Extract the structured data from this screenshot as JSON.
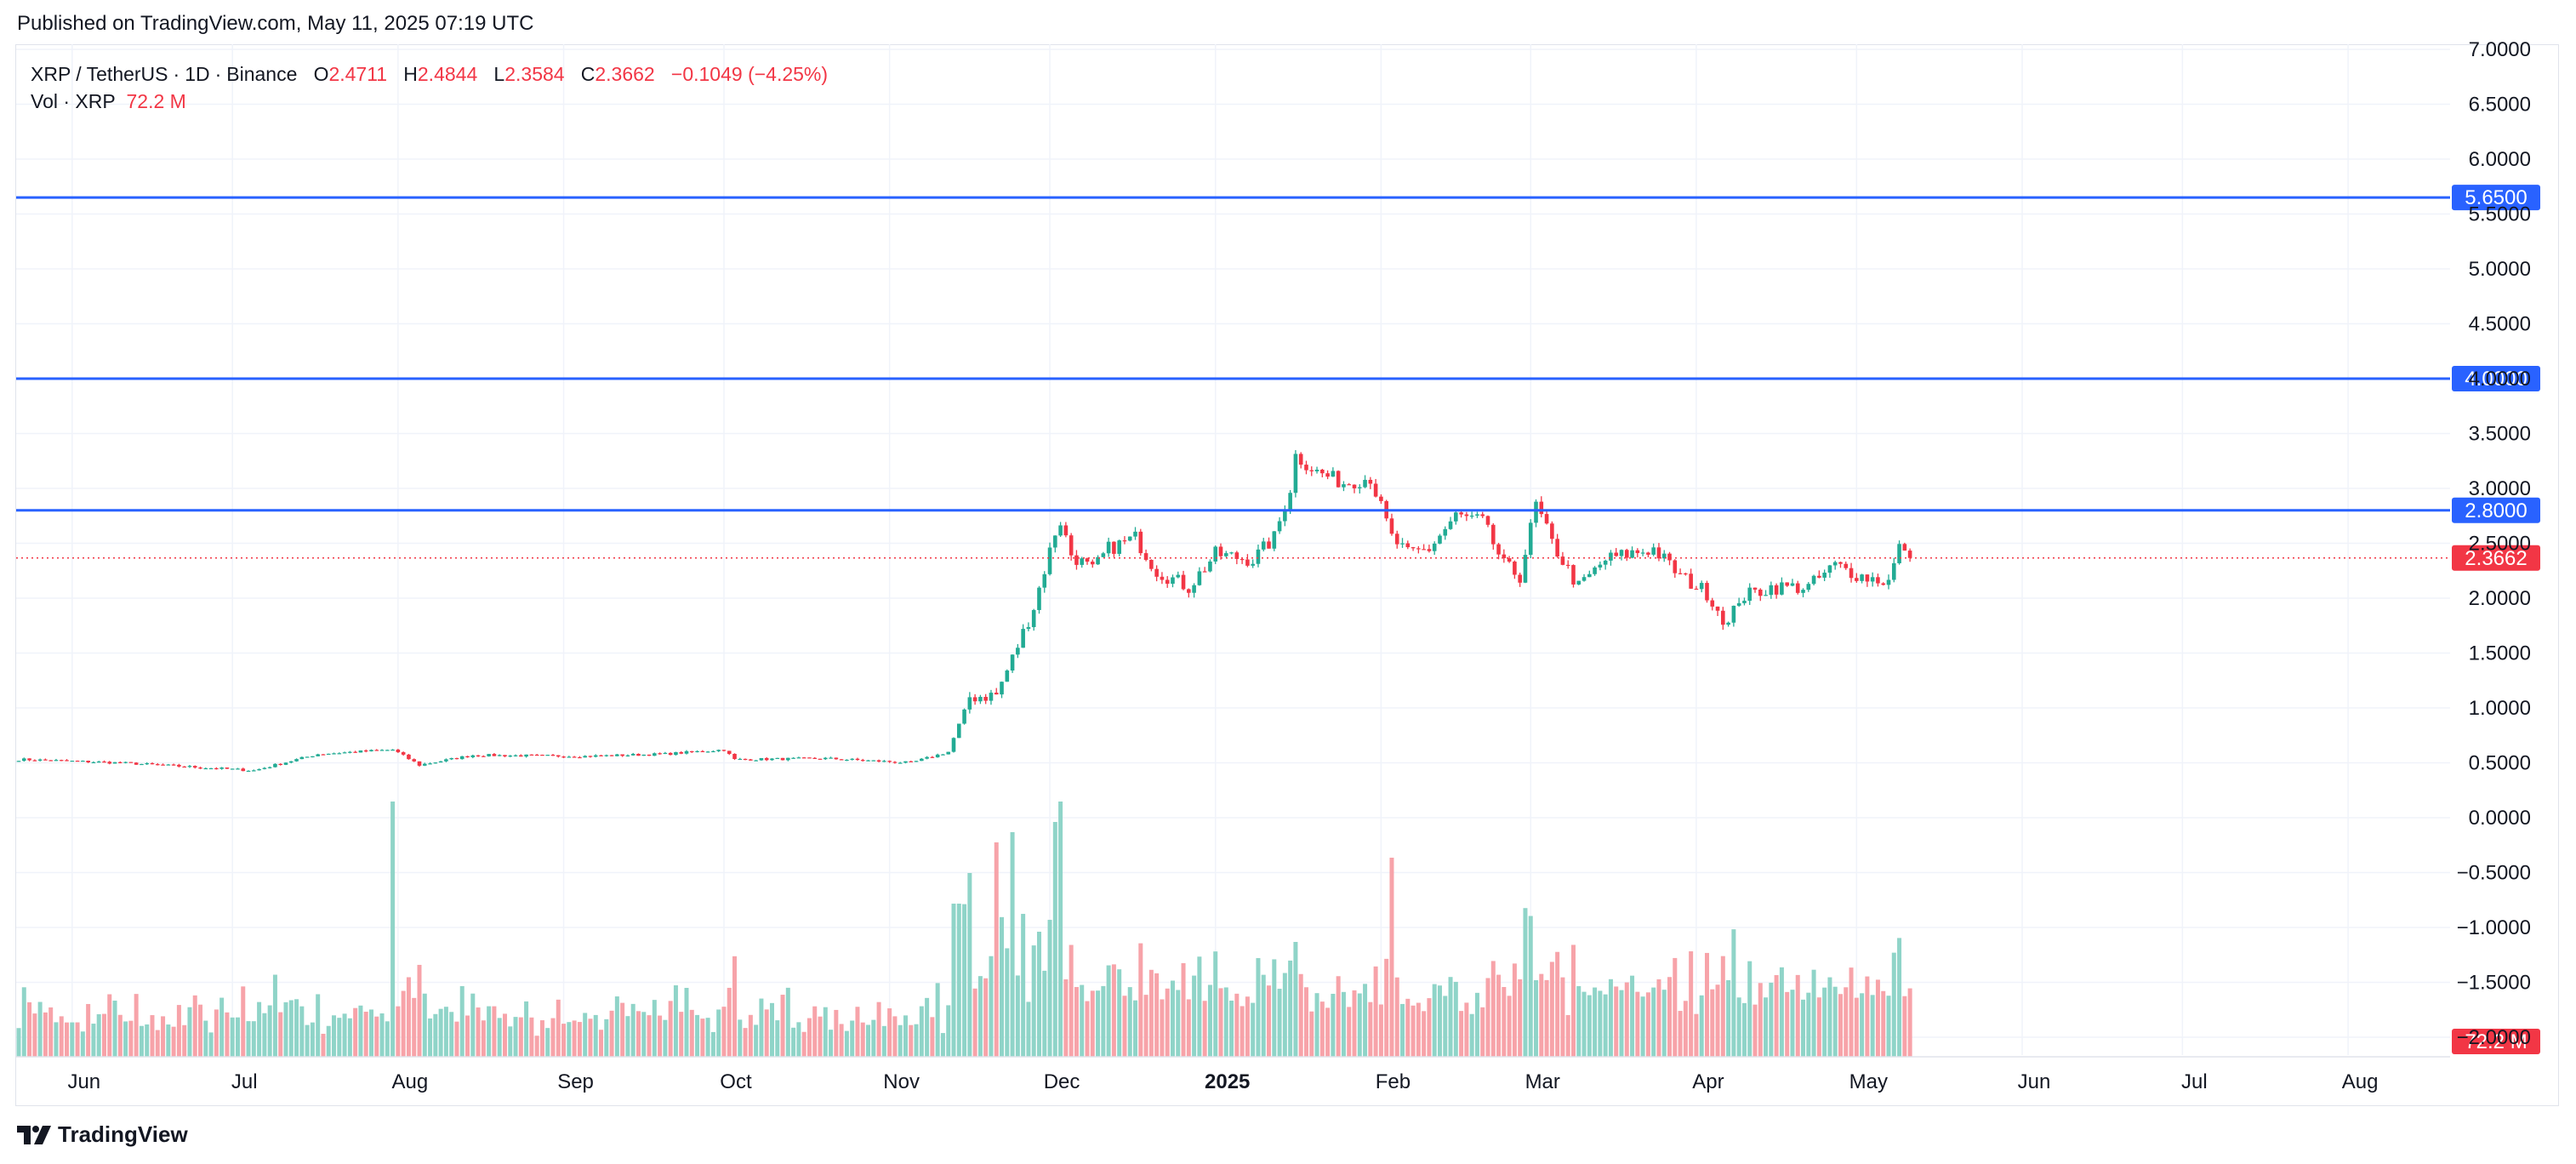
{
  "header": {
    "published": "Published on TradingView.com, May 11, 2025 07:19 UTC"
  },
  "legend": {
    "symbol": "XRP / TetherUS",
    "interval": "1D",
    "exchange": "Binance",
    "open_label": "O",
    "open": "2.4711",
    "high_label": "H",
    "high": "2.4844",
    "low_label": "L",
    "low": "2.3584",
    "close_label": "C",
    "close": "2.3662",
    "change": "−0.1049 (−4.25%)",
    "vol_label": "Vol · XRP",
    "vol_value": "72.2 M"
  },
  "footer": {
    "brand": "TradingView"
  },
  "colors": {
    "up": "#22ab94",
    "down": "#f23645",
    "up_vol": "#8fd4c8",
    "down_vol": "#f7a3a9",
    "hline": "#2962ff",
    "grid": "#f0f3fa"
  },
  "chart_data": {
    "type": "candlestick",
    "symbol": "XRP / TetherUS",
    "interval": "1D",
    "y_ticks": [
      "7.0000",
      "6.5000",
      "6.0000",
      "5.5000",
      "5.0000",
      "4.5000",
      "4.0000",
      "3.5000",
      "3.0000",
      "2.5000",
      "2.0000",
      "1.5000",
      "1.0000",
      "0.5000",
      "0.0000",
      "−0.5000",
      "−1.0000",
      "−1.5000",
      "−2.0000"
    ],
    "ylim": [
      -2.0,
      7.0
    ],
    "x_ticks": [
      "Jun",
      "Jul",
      "Aug",
      "Sep",
      "Oct",
      "Nov",
      "Dec",
      "2025",
      "Feb",
      "Mar",
      "Apr",
      "May",
      "Jun",
      "Jul",
      "Aug"
    ],
    "x_bold": [
      "2025"
    ],
    "horizontal_lines": [
      {
        "value": 5.65,
        "label": "5.6500"
      },
      {
        "value": 4.0,
        "label": "4.0000"
      },
      {
        "value": 2.8,
        "label": "2.8000"
      }
    ],
    "last_price": {
      "value": 2.3662,
      "label": "2.3662"
    },
    "volume_label": "72.2 M",
    "price_path": [
      [
        "2024-05-23",
        0.53
      ],
      [
        "2024-06-10",
        0.5
      ],
      [
        "2024-07-05",
        0.43
      ],
      [
        "2024-07-17",
        0.58
      ],
      [
        "2024-07-31",
        0.62
      ],
      [
        "2024-08-05",
        0.48
      ],
      [
        "2024-08-15",
        0.57
      ],
      [
        "2024-09-05",
        0.56
      ],
      [
        "2024-09-20",
        0.58
      ],
      [
        "2024-10-01",
        0.62
      ],
      [
        "2024-10-03",
        0.53
      ],
      [
        "2024-10-20",
        0.54
      ],
      [
        "2024-11-05",
        0.5
      ],
      [
        "2024-11-12",
        0.6
      ],
      [
        "2024-11-16",
        1.1
      ],
      [
        "2024-11-21",
        1.12
      ],
      [
        "2024-11-24",
        1.45
      ],
      [
        "2024-11-28",
        1.92
      ],
      [
        "2024-12-02",
        2.6
      ],
      [
        "2024-12-03",
        2.7
      ],
      [
        "2024-12-05",
        2.4
      ],
      [
        "2024-12-09",
        2.25
      ],
      [
        "2024-12-12",
        2.45
      ],
      [
        "2024-12-17",
        2.55
      ],
      [
        "2024-12-21",
        2.25
      ],
      [
        "2024-12-27",
        2.1
      ],
      [
        "2025-01-01",
        2.4
      ],
      [
        "2025-01-08",
        2.35
      ],
      [
        "2025-01-12",
        2.55
      ],
      [
        "2025-01-15",
        3.0
      ],
      [
        "2025-01-16",
        3.3
      ],
      [
        "2025-01-20",
        3.15
      ],
      [
        "2025-01-25",
        3.05
      ],
      [
        "2025-01-30",
        3.1
      ],
      [
        "2025-02-03",
        2.55
      ],
      [
        "2025-02-06",
        2.4
      ],
      [
        "2025-02-10",
        2.45
      ],
      [
        "2025-02-15",
        2.75
      ],
      [
        "2025-02-20",
        2.7
      ],
      [
        "2025-02-24",
        2.3
      ],
      [
        "2025-02-27",
        2.2
      ],
      [
        "2025-03-02",
        2.85
      ],
      [
        "2025-03-05",
        2.5
      ],
      [
        "2025-03-10",
        2.1
      ],
      [
        "2025-03-15",
        2.35
      ],
      [
        "2025-03-19",
        2.4
      ],
      [
        "2025-03-24",
        2.45
      ],
      [
        "2025-03-29",
        2.2
      ],
      [
        "2025-04-03",
        2.05
      ],
      [
        "2025-04-07",
        1.75
      ],
      [
        "2025-04-09",
        2.0
      ],
      [
        "2025-04-15",
        2.1
      ],
      [
        "2025-04-22",
        2.1
      ],
      [
        "2025-04-27",
        2.3
      ],
      [
        "2025-05-02",
        2.2
      ],
      [
        "2025-05-07",
        2.15
      ],
      [
        "2025-05-09",
        2.45
      ],
      [
        "2025-05-10",
        2.47
      ],
      [
        "2025-05-11",
        2.3662
      ]
    ],
    "volume_spikes": [
      [
        "2024-07-31",
        1.0
      ],
      [
        "2024-11-16",
        0.72
      ],
      [
        "2024-11-21",
        0.84
      ],
      [
        "2024-11-24",
        0.88
      ],
      [
        "2024-12-02",
        0.92
      ],
      [
        "2024-12-03",
        1.0
      ],
      [
        "2025-01-16",
        0.45
      ],
      [
        "2025-02-03",
        0.78
      ],
      [
        "2025-03-02",
        0.3
      ],
      [
        "2025-04-07",
        0.3
      ]
    ]
  }
}
